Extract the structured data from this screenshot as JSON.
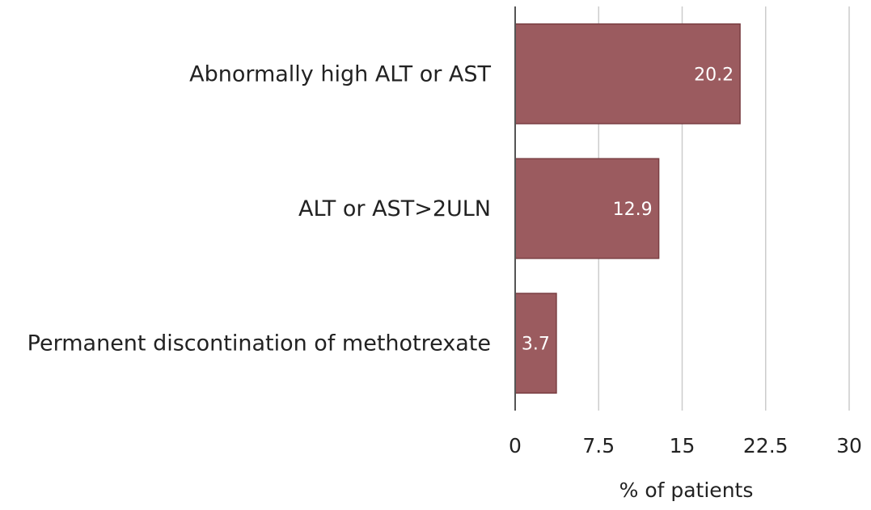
{
  "chart_data": {
    "type": "bar",
    "orientation": "horizontal",
    "categories": [
      "Abnormally high ALT or AST",
      "ALT or AST>2ULN",
      "Permanent discontination of methotrexate"
    ],
    "values": [
      20.2,
      12.9,
      3.7
    ],
    "data_labels": [
      "20.2",
      "12.9",
      "3.7"
    ],
    "xlabel": "% of patients",
    "ylabel": "",
    "xlim": [
      0,
      30
    ],
    "x_ticks": [
      "0",
      "7.5",
      "15",
      "22.5",
      "30"
    ],
    "grid": "vertical",
    "bar_color": "#9b5b5f",
    "bar_edge_color": "#7a3f43"
  }
}
